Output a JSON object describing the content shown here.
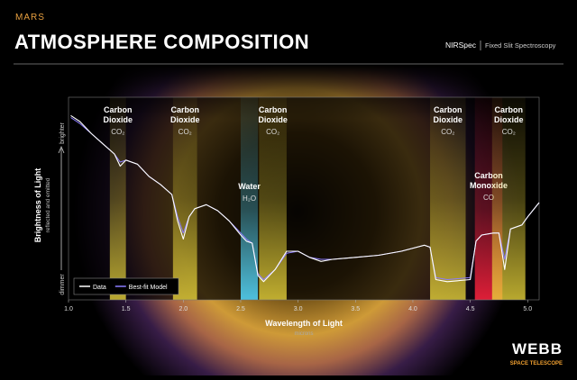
{
  "header": {
    "kicker": "MARS",
    "title": "ATMOSPHERE COMPOSITION",
    "instrument": "NIRSpec",
    "mode": "Fixed Slit Spectroscopy"
  },
  "chart_data": {
    "type": "line",
    "x": [
      1.02,
      1.1,
      1.2,
      1.3,
      1.4,
      1.45,
      1.5,
      1.6,
      1.7,
      1.8,
      1.9,
      1.95,
      2.0,
      2.05,
      2.1,
      2.2,
      2.3,
      2.4,
      2.5,
      2.55,
      2.6,
      2.65,
      2.7,
      2.8,
      2.9,
      3.0,
      3.1,
      3.2,
      3.3,
      3.5,
      3.7,
      3.9,
      4.1,
      4.15,
      4.2,
      4.3,
      4.5,
      4.55,
      4.6,
      4.7,
      4.75,
      4.8,
      4.85,
      4.95,
      5.0,
      5.1
    ],
    "series": [
      {
        "name": "Data",
        "color": "#ffffff",
        "values": [
          91,
          88,
          82,
          77,
          72,
          66,
          69,
          67,
          61,
          57,
          52,
          39,
          30,
          41,
          45,
          47,
          44,
          39,
          32,
          29,
          28,
          12,
          9,
          15,
          24,
          24,
          21,
          19,
          20,
          21,
          22,
          24,
          27,
          26,
          10,
          9,
          10,
          29,
          32,
          33,
          33,
          15,
          35,
          37,
          41,
          48
        ]
      },
      {
        "name": "Best-fit Model",
        "color": "#8b7cff",
        "values": [
          90,
          87,
          82,
          77,
          72,
          68,
          69,
          67,
          61,
          57,
          52,
          41,
          33,
          41,
          45,
          47,
          44,
          39,
          33,
          30,
          28,
          13,
          10,
          15,
          23,
          24,
          21,
          20,
          20,
          21,
          22,
          24,
          27,
          26,
          11,
          10,
          11,
          29,
          32,
          33,
          33,
          20,
          35,
          37,
          41,
          48
        ]
      }
    ],
    "bands": [
      {
        "name": [
          "Carbon",
          "Dioxide"
        ],
        "formula": "CO₂",
        "xrange": [
          1.36,
          1.5
        ],
        "color": "#e6d23a"
      },
      {
        "name": [
          "Carbon",
          "Dioxide"
        ],
        "formula": "CO₂",
        "xrange": [
          1.91,
          2.12
        ],
        "color": "#e6d23a"
      },
      {
        "name": [
          "Water"
        ],
        "formula": "H₂O",
        "xrange": [
          2.5,
          2.65
        ],
        "color": "#4fc8e8"
      },
      {
        "name": [
          "Carbon",
          "Dioxide"
        ],
        "formula": "CO₂",
        "xrange": [
          2.66,
          2.9
        ],
        "color": "#e6d23a"
      },
      {
        "name": [
          "Carbon",
          "Dioxide"
        ],
        "formula": "CO₂",
        "xrange": [
          4.15,
          4.46
        ],
        "color": "#e6d23a"
      },
      {
        "name": [
          "Carbon",
          "Monoxide"
        ],
        "formula": "CO",
        "xrange": [
          4.54,
          4.78
        ],
        "color": "#e8203a"
      },
      {
        "name": [
          "Carbon",
          "Dioxide"
        ],
        "formula": "CO₂",
        "xrange": [
          4.69,
          4.98
        ],
        "color": "#e6d23a"
      }
    ],
    "xlim": [
      1.0,
      5.1
    ],
    "ylim": [
      0,
      100
    ],
    "xticks": [
      {
        "value": 1,
        "label": "1.0"
      },
      1.5,
      {
        "value": 2,
        "label": "2.0"
      },
      2.5,
      {
        "value": 3,
        "label": "3.0"
      },
      3.5,
      {
        "value": 4,
        "label": "4.0"
      },
      4.5,
      {
        "value": 5,
        "label": "5.0"
      }
    ],
    "x_label": "Wavelength of Light",
    "x_unit": "microns",
    "y_label": "Brightness of Light",
    "y_sublabel": "reflected and emitted",
    "y_top": "brighter",
    "y_bottom": "dimmer",
    "legend": "bottom-left"
  },
  "footer": {
    "logo": "WEBB",
    "logo_sub": "SPACE TELESCOPE"
  }
}
